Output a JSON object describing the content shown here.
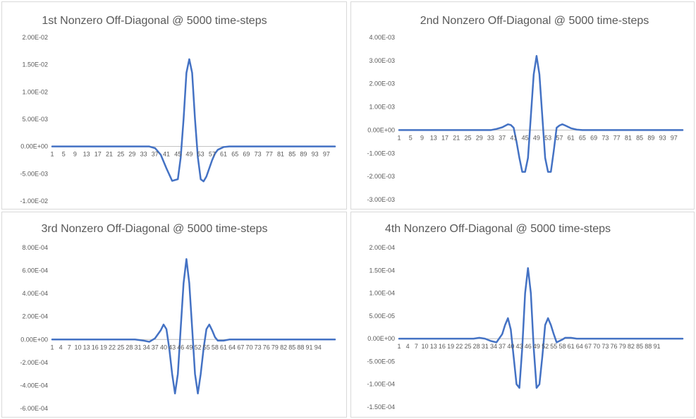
{
  "chart_data": [
    {
      "type": "line",
      "title": "1st Nonzero Off-Diagonal  @ 5000 time-steps",
      "xlabel": "",
      "ylabel": "",
      "ylim": [
        -0.01,
        0.02
      ],
      "yticks": [
        -0.01,
        -0.005,
        0,
        0.005,
        0.01,
        0.015,
        0.02
      ],
      "ytick_labels": [
        "-1.00E-02",
        "-5.00E-03",
        "0.00E+00",
        "5.00E-03",
        "1.00E-02",
        "1.50E-02",
        "2.00E-02"
      ],
      "xtick_labels": [
        "1",
        "5",
        "9",
        "13",
        "17",
        "21",
        "25",
        "29",
        "33",
        "37",
        "41",
        "45",
        "49",
        "53",
        "57",
        "61",
        "65",
        "69",
        "73",
        "77",
        "81",
        "85",
        "89",
        "93",
        "97"
      ],
      "xtick_positions": [
        1,
        5,
        9,
        13,
        17,
        21,
        25,
        29,
        33,
        37,
        41,
        45,
        49,
        53,
        57,
        61,
        65,
        69,
        73,
        77,
        81,
        85,
        89,
        93,
        97
      ],
      "xlim": [
        1,
        100
      ],
      "grid": false,
      "color": "#4472c4",
      "series": [
        {
          "x": [
            1,
            35,
            37,
            39,
            41,
            43,
            45,
            46,
            47,
            48,
            49,
            50,
            51,
            52,
            53,
            54,
            55,
            56,
            57,
            58,
            59,
            61,
            63,
            65,
            100
          ],
          "y": [
            0,
            0,
            -0.0003,
            -0.0015,
            -0.004,
            -0.0063,
            -0.006,
            -0.002,
            0.005,
            0.0135,
            0.016,
            0.0135,
            0.005,
            -0.002,
            -0.006,
            -0.0064,
            -0.0055,
            -0.004,
            -0.0025,
            -0.0013,
            -0.0006,
            -0.0001,
            0,
            0,
            0
          ]
        }
      ]
    },
    {
      "type": "line",
      "title": "2nd Nonzero Off-Diagonal  @ 5000 time-steps",
      "xlabel": "",
      "ylabel": "",
      "ylim": [
        -0.003,
        0.004
      ],
      "yticks": [
        -0.003,
        -0.002,
        -0.001,
        0,
        0.001,
        0.002,
        0.003,
        0.004
      ],
      "ytick_labels": [
        "-3.00E-03",
        "-2.00E-03",
        "-1.00E-03",
        "0.00E+00",
        "1.00E-03",
        "2.00E-03",
        "3.00E-03",
        "4.00E-03"
      ],
      "xtick_labels": [
        "1",
        "5",
        "9",
        "13",
        "17",
        "21",
        "25",
        "29",
        "33",
        "37",
        "41",
        "45",
        "49",
        "53",
        "57",
        "61",
        "65",
        "69",
        "73",
        "77",
        "81",
        "85",
        "89",
        "93",
        "97"
      ],
      "xtick_positions": [
        1,
        5,
        9,
        13,
        17,
        21,
        25,
        29,
        33,
        37,
        41,
        45,
        49,
        53,
        57,
        61,
        65,
        69,
        73,
        77,
        81,
        85,
        89,
        93,
        97
      ],
      "xlim": [
        1,
        100
      ],
      "grid": false,
      "color": "#4472c4",
      "series": [
        {
          "x": [
            1,
            33,
            35,
            37,
            39,
            40,
            41,
            42,
            43,
            44,
            45,
            46,
            47,
            48,
            49,
            50,
            51,
            52,
            53,
            54,
            55,
            56,
            57,
            58,
            59,
            61,
            63,
            65,
            100
          ],
          "y": [
            0,
            0,
            5e-05,
            0.00012,
            0.00025,
            0.00022,
            0.0001,
            -0.0005,
            -0.0012,
            -0.0018,
            -0.0018,
            -0.0012,
            0.0006,
            0.0024,
            0.0032,
            0.0024,
            0.0006,
            -0.0012,
            -0.0018,
            -0.0018,
            -0.0009,
            0.0001,
            0.0002,
            0.00025,
            0.0002,
            8e-05,
            2e-05,
            0,
            0
          ]
        }
      ]
    },
    {
      "type": "line",
      "title": "3rd Nonzero Off-Diagonal  @ 5000 time-steps",
      "xlabel": "",
      "ylabel": "",
      "ylim": [
        -0.0006,
        0.0008
      ],
      "yticks": [
        -0.0006,
        -0.0004,
        -0.0002,
        0,
        0.0002,
        0.0004,
        0.0006,
        0.0008
      ],
      "ytick_labels": [
        "-6.00E-04",
        "-4.00E-04",
        "-2.00E-04",
        "0.00E+00",
        "2.00E-04",
        "4.00E-04",
        "6.00E-04",
        "8.00E-04"
      ],
      "xtick_labels": [
        "1",
        "4",
        "7",
        "10",
        "13",
        "16",
        "19",
        "22",
        "25",
        "28",
        "31",
        "34",
        "37",
        "40",
        "43",
        "46",
        "49",
        "52",
        "55",
        "58",
        "61",
        "64",
        "67",
        "70",
        "73",
        "76",
        "79",
        "82",
        "85",
        "88",
        "91",
        "94"
      ],
      "xtick_positions": [
        1,
        4,
        7,
        10,
        13,
        16,
        19,
        22,
        25,
        28,
        31,
        34,
        37,
        40,
        43,
        46,
        49,
        52,
        55,
        58,
        61,
        64,
        67,
        70,
        73,
        76,
        79,
        82,
        85,
        88,
        91,
        94
      ],
      "xlim": [
        1,
        100
      ],
      "grid": false,
      "color": "#4472c4",
      "series": [
        {
          "x": [
            1,
            30,
            33,
            35,
            37,
            39,
            40,
            41,
            42,
            43,
            44,
            45,
            46,
            47,
            48,
            49,
            50,
            51,
            52,
            53,
            54,
            55,
            56,
            57,
            58,
            59,
            61,
            63,
            65,
            100
          ],
          "y": [
            0,
            0,
            -1e-05,
            -2e-05,
            1e-05,
            8e-05,
            0.00013,
            9e-05,
            -8e-05,
            -0.0003,
            -0.00047,
            -0.0003,
            0.0001,
            0.00049,
            0.0007,
            0.00049,
            0.0001,
            -0.0003,
            -0.00047,
            -0.0003,
            -8e-05,
            9e-05,
            0.00013,
            8e-05,
            2e-05,
            -1e-05,
            -1e-05,
            0,
            0,
            0
          ]
        }
      ]
    },
    {
      "type": "line",
      "title": "4th Nonzero Off-Diagonal  @ 5000 time-steps",
      "xlabel": "",
      "ylabel": "",
      "ylim": [
        -0.00015,
        0.0002
      ],
      "yticks": [
        -0.00015,
        -0.0001,
        -5e-05,
        0,
        5e-05,
        0.0001,
        0.00015,
        0.0002
      ],
      "ytick_labels": [
        "-1.50E-04",
        "-1.00E-04",
        "-5.00E-05",
        "0.00E+00",
        "5.00E-05",
        "1.00E-04",
        "1.50E-04",
        "2.00E-04"
      ],
      "xtick_labels": [
        "1",
        "4",
        "7",
        "10",
        "13",
        "16",
        "19",
        "22",
        "25",
        "28",
        "31",
        "34",
        "37",
        "40",
        "43",
        "46",
        "49",
        "52",
        "55",
        "58",
        "61",
        "64",
        "67",
        "70",
        "73",
        "76",
        "79",
        "82",
        "85",
        "88",
        "91"
      ],
      "xtick_positions": [
        1,
        4,
        7,
        10,
        13,
        16,
        19,
        22,
        25,
        28,
        31,
        34,
        37,
        40,
        43,
        46,
        49,
        52,
        55,
        58,
        61,
        64,
        67,
        70,
        73,
        76,
        79,
        82,
        85,
        88,
        91
      ],
      "xlim": [
        1,
        100
      ],
      "grid": false,
      "color": "#4472c4",
      "series": [
        {
          "x": [
            1,
            27,
            29,
            31,
            33,
            35,
            37,
            38,
            39,
            40,
            41,
            42,
            43,
            44,
            45,
            46,
            47,
            48,
            49,
            50,
            51,
            52,
            53,
            54,
            55,
            56,
            57,
            58,
            59,
            61,
            63,
            65,
            67,
            100
          ],
          "y": [
            0,
            0,
            2e-06,
            0,
            -5e-06,
            -8e-06,
            1e-05,
            3e-05,
            4.5e-05,
            2e-05,
            -4e-05,
            -0.0001,
            -0.000108,
            -2e-05,
            0.0001,
            0.000155,
            0.0001,
            -2e-05,
            -0.000108,
            -0.0001,
            -4e-05,
            3e-05,
            4.5e-05,
            3e-05,
            1e-05,
            -8e-06,
            -5e-06,
            -2e-06,
            2e-06,
            2e-06,
            0,
            0,
            0,
            0
          ]
        }
      ]
    }
  ]
}
